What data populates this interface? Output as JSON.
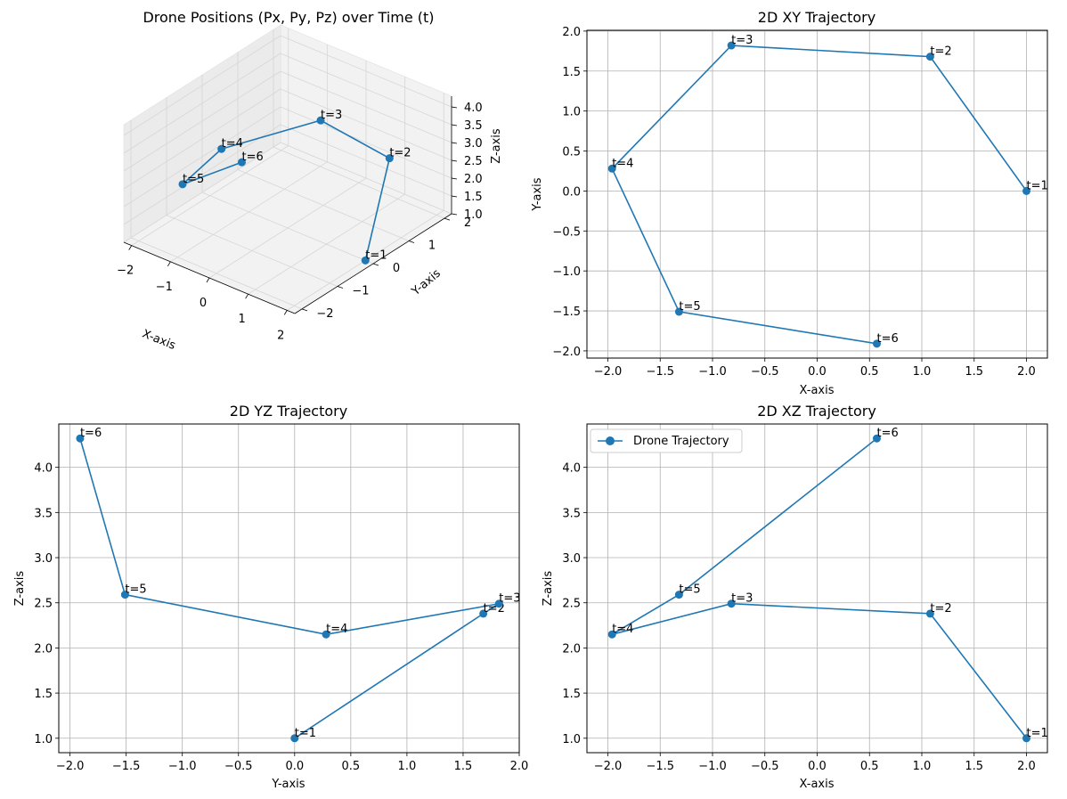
{
  "chart_data": [
    {
      "type": "line3d",
      "title": "Drone Positions (Px, Py, Pz) over Time (t)",
      "xlabel": "X-axis",
      "ylabel": "Y-axis",
      "zlabel": "Z-axis",
      "xlim": [
        -2.2,
        2.2
      ],
      "ylim": [
        -2.2,
        2.2
      ],
      "zlim": [
        1.0,
        4.3
      ],
      "xticks": [
        -2,
        -1,
        0,
        1,
        2
      ],
      "yticks": [
        -2,
        -1,
        0,
        1,
        2
      ],
      "zticks": [
        1.0,
        1.5,
        2.0,
        2.5,
        3.0,
        3.5,
        4.0
      ],
      "grid": true,
      "points": [
        {
          "label": "t=1",
          "x": 2.0,
          "y": 0.0,
          "z": 1.0
        },
        {
          "label": "t=2",
          "x": 1.08,
          "y": 1.68,
          "z": 2.38
        },
        {
          "label": "t=3",
          "x": -0.82,
          "y": 1.82,
          "z": 2.49
        },
        {
          "label": "t=4",
          "x": -1.96,
          "y": 0.28,
          "z": 2.15
        },
        {
          "label": "t=5",
          "x": -1.32,
          "y": -1.51,
          "z": 2.59
        },
        {
          "label": "t=6",
          "x": 0.57,
          "y": -1.91,
          "z": 4.32
        }
      ]
    },
    {
      "type": "line",
      "title": "2D XY Trajectory",
      "xlabel": "X-axis",
      "ylabel": "Y-axis",
      "xlim": [
        -2.2,
        2.2
      ],
      "ylim": [
        -2.09,
        2.01
      ],
      "xticks": [
        "-2.0",
        "-1.5",
        "-1.0",
        "-0.5",
        "0.0",
        "0.5",
        "1.0",
        "1.5",
        "2.0"
      ],
      "yticks": [
        "-2.0",
        "-1.5",
        "-1.0",
        "-0.5",
        "0.0",
        "0.5",
        "1.0",
        "1.5",
        "2.0"
      ],
      "grid": true,
      "points": [
        {
          "label": "t=1",
          "x": 2.0,
          "y": 0.0
        },
        {
          "label": "t=2",
          "x": 1.08,
          "y": 1.68
        },
        {
          "label": "t=3",
          "x": -0.82,
          "y": 1.82
        },
        {
          "label": "t=4",
          "x": -1.96,
          "y": 0.28
        },
        {
          "label": "t=5",
          "x": -1.32,
          "y": -1.51
        },
        {
          "label": "t=6",
          "x": 0.57,
          "y": -1.91
        }
      ]
    },
    {
      "type": "line",
      "title": "2D YZ Trajectory",
      "xlabel": "Y-axis",
      "ylabel": "Z-axis",
      "xlim": [
        -2.1,
        2.0
      ],
      "ylim": [
        0.84,
        4.48
      ],
      "xticks": [
        "-2.0",
        "-1.5",
        "-1.0",
        "-0.5",
        "0.0",
        "0.5",
        "1.0",
        "1.5",
        "2.0"
      ],
      "yticks": [
        "1.0",
        "1.5",
        "2.0",
        "2.5",
        "3.0",
        "3.5",
        "4.0"
      ],
      "grid": true,
      "points": [
        {
          "label": "t=1",
          "x": 0.0,
          "y": 1.0
        },
        {
          "label": "t=2",
          "x": 1.68,
          "y": 2.38
        },
        {
          "label": "t=3",
          "x": 1.82,
          "y": 2.49
        },
        {
          "label": "t=4",
          "x": 0.28,
          "y": 2.15
        },
        {
          "label": "t=5",
          "x": -1.51,
          "y": 2.59
        },
        {
          "label": "t=6",
          "x": -1.91,
          "y": 4.32
        }
      ]
    },
    {
      "type": "line",
      "title": "2D XZ Trajectory",
      "xlabel": "X-axis",
      "ylabel": "Z-axis",
      "xlim": [
        -2.2,
        2.2
      ],
      "ylim": [
        0.84,
        4.48
      ],
      "xticks": [
        "-2.0",
        "-1.5",
        "-1.0",
        "-0.5",
        "0.0",
        "0.5",
        "1.0",
        "1.5",
        "2.0"
      ],
      "yticks": [
        "1.0",
        "1.5",
        "2.0",
        "2.5",
        "3.0",
        "3.5",
        "4.0"
      ],
      "grid": true,
      "legend": {
        "label": "Drone Trajectory",
        "loc": "upper left"
      },
      "points": [
        {
          "label": "t=1",
          "x": 2.0,
          "y": 1.0
        },
        {
          "label": "t=2",
          "x": 1.08,
          "y": 2.38
        },
        {
          "label": "t=3",
          "x": -0.82,
          "y": 2.49
        },
        {
          "label": "t=4",
          "x": -1.96,
          "y": 2.15
        },
        {
          "label": "t=5",
          "x": -1.32,
          "y": 2.59
        },
        {
          "label": "t=6",
          "x": 0.57,
          "y": 4.32
        }
      ]
    }
  ],
  "colors": {
    "series": "#1f77b4",
    "grid": "#b0b0b0",
    "pane_top": "#f2f2f2",
    "pane_side": "#ebebeb",
    "pane_back": "#e6e6e6",
    "axes": "#000000"
  }
}
